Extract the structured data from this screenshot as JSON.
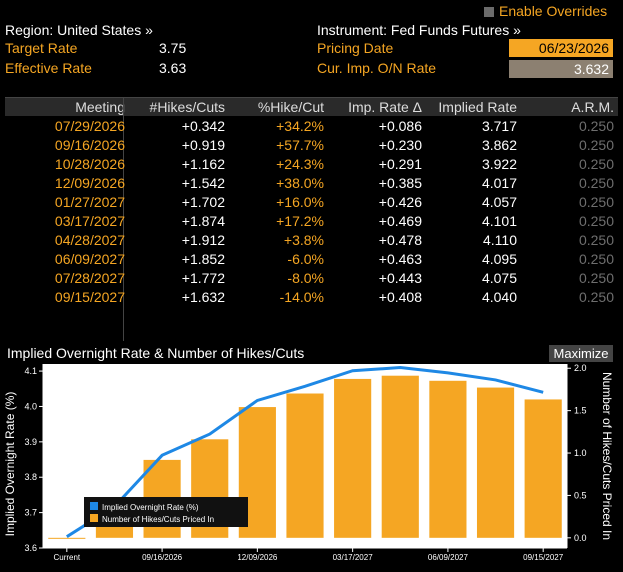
{
  "header": {
    "region_label": "Region: United States »",
    "instrument_label": "Instrument: Fed Funds Futures »",
    "enable_overrides": "Enable Overrides",
    "target_rate_label": "Target Rate",
    "target_rate_value": "3.75",
    "effective_rate_label": "Effective Rate",
    "effective_rate_value": "3.63",
    "pricing_date_label": "Pricing Date",
    "pricing_date_value": "06/23/2026",
    "cur_imp_label": "Cur. Imp. O/N Rate",
    "cur_imp_value": "3.632"
  },
  "table": {
    "headers": [
      "Meeting",
      "#Hikes/Cuts",
      "%Hike/Cut",
      "Imp. Rate Δ",
      "Implied Rate",
      "A.R.M."
    ],
    "rows": [
      [
        "07/29/2026",
        "+0.342",
        "+34.2%",
        "+0.086",
        "3.717",
        "0.250"
      ],
      [
        "09/16/2026",
        "+0.919",
        "+57.7%",
        "+0.230",
        "3.862",
        "0.250"
      ],
      [
        "10/28/2026",
        "+1.162",
        "+24.3%",
        "+0.291",
        "3.922",
        "0.250"
      ],
      [
        "12/09/2026",
        "+1.542",
        "+38.0%",
        "+0.385",
        "4.017",
        "0.250"
      ],
      [
        "01/27/2027",
        "+1.702",
        "+16.0%",
        "+0.426",
        "4.057",
        "0.250"
      ],
      [
        "03/17/2027",
        "+1.874",
        "+17.2%",
        "+0.469",
        "4.101",
        "0.250"
      ],
      [
        "04/28/2027",
        "+1.912",
        "+3.8%",
        "+0.478",
        "4.110",
        "0.250"
      ],
      [
        "06/09/2027",
        "+1.852",
        "-6.0%",
        "+0.463",
        "4.095",
        "0.250"
      ],
      [
        "07/28/2027",
        "+1.772",
        "-8.0%",
        "+0.443",
        "4.075",
        "0.250"
      ],
      [
        "09/15/2027",
        "+1.632",
        "-14.0%",
        "+0.408",
        "4.040",
        "0.250"
      ]
    ]
  },
  "chart_panel": {
    "title": "Implied Overnight Rate & Number of Hikes/Cuts",
    "maximize_label": "Maximize"
  },
  "chart_data": {
    "type": "bar+line",
    "categories": [
      "Current",
      "07/29/2026",
      "09/16/2026",
      "10/28/2026",
      "12/09/2026",
      "01/27/2027",
      "03/17/2027",
      "04/28/2027",
      "06/09/2027",
      "07/28/2027",
      "09/15/2027"
    ],
    "x_tick_labels": [
      "Current",
      "09/16/2026",
      "12/09/2026",
      "03/17/2027",
      "06/09/2027",
      "09/15/2027"
    ],
    "series": [
      {
        "name": "Implied Overnight Rate (%)",
        "axis": "left",
        "type": "line",
        "color": "#1e88e5",
        "values": [
          3.632,
          3.717,
          3.862,
          3.922,
          4.017,
          4.057,
          4.101,
          4.11,
          4.095,
          4.075,
          4.04
        ]
      },
      {
        "name": "Number of Hikes/Cuts Priced In",
        "axis": "right",
        "type": "bar",
        "color": "#f5a623",
        "values": [
          0,
          0.342,
          0.919,
          1.162,
          1.542,
          1.702,
          1.874,
          1.912,
          1.852,
          1.772,
          1.632
        ]
      }
    ],
    "ylabel_left": "Implied Overnight Rate (%)",
    "ylabel_right": "Number of Hikes/Cuts Priced In",
    "ylim_left": [
      3.6,
      4.12
    ],
    "yticks_left": [
      "3.6",
      "3.7",
      "3.8",
      "3.9",
      "4.0",
      "4.1"
    ],
    "ylim_right": [
      -0.12,
      2.05
    ],
    "yticks_right": [
      "0.0",
      "0.5",
      "1.0",
      "1.5",
      "2.0"
    ],
    "legend_placement": "bottom-left",
    "grid": false
  }
}
